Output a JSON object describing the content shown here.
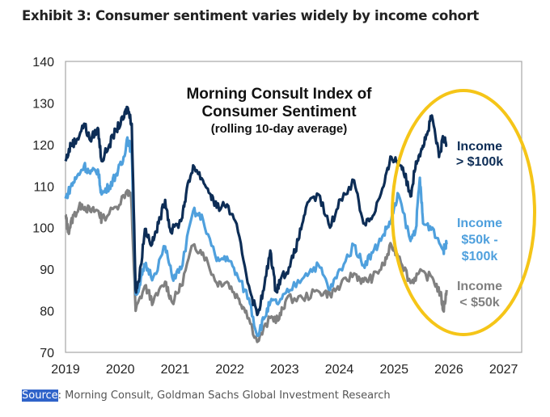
{
  "exhibit_title": "Exhibit 3: Consumer sentiment varies widely by income cohort",
  "source": {
    "label": "Source",
    "text": ": Morning Consult, Goldman Sachs Global Investment Research"
  },
  "chart_data": {
    "type": "line",
    "title": [
      "Morning Consult Index of",
      "Consumer Sentiment"
    ],
    "subtitle": "(rolling 10-day average)",
    "xlim": [
      2019,
      2027.33
    ],
    "ylim": [
      70,
      140
    ],
    "xticks": [
      "2019",
      "2020",
      "2021",
      "2022",
      "2023",
      "2024",
      "2025",
      "2026",
      "2027"
    ],
    "yticks": [
      "70",
      "80",
      "90",
      "100",
      "110",
      "120",
      "130",
      "140"
    ],
    "grid": false,
    "annotation": {
      "shape": "ellipse",
      "color": "#F5C518",
      "around": "2025-2026 data"
    },
    "series": [
      {
        "name": "Income > $100k",
        "label_lines": [
          "Income",
          "> $100k"
        ],
        "color": "#0d2d56",
        "x": [
          2019.0,
          2019.1,
          2019.2,
          2019.34,
          2019.45,
          2019.59,
          2019.66,
          2019.8,
          2019.93,
          2020.05,
          2020.13,
          2020.21,
          2020.28,
          2020.35,
          2020.45,
          2020.58,
          2020.7,
          2020.82,
          2020.92,
          2021.11,
          2021.2,
          2021.33,
          2021.51,
          2021.65,
          2021.76,
          2021.95,
          2022.15,
          2022.35,
          2022.5,
          2022.62,
          2022.74,
          2022.84,
          2022.94,
          2023.1,
          2023.25,
          2023.39,
          2023.62,
          2023.83,
          2024.02,
          2024.27,
          2024.44,
          2024.61,
          2024.81,
          2024.95,
          2025.05,
          2025.16,
          2025.3,
          2025.4,
          2025.5,
          2025.6,
          2025.69,
          2025.82,
          2025.9,
          2025.96
        ],
        "y": [
          116,
          120,
          121,
          125,
          121,
          124,
          116,
          120,
          123.7,
          126,
          129,
          125,
          85,
          88,
          99.7,
          96,
          101,
          106.7,
          99,
          101.6,
          108,
          115,
          111.4,
          108,
          104.8,
          105.6,
          99,
          86,
          79,
          85,
          94.5,
          84.7,
          88,
          90.6,
          97,
          104.8,
          108,
          100,
          106.8,
          111.4,
          101,
          102.8,
          110,
          117,
          116,
          114.5,
          107.5,
          115.9,
          119,
          122.3,
          127,
          117,
          121.7,
          119.8
        ]
      },
      {
        "name": "Income $50k - $100k",
        "label_lines": [
          "Income",
          "$50k -",
          "$100k"
        ],
        "color": "#4fa0dd",
        "x": [
          2019.0,
          2019.1,
          2019.2,
          2019.34,
          2019.45,
          2019.59,
          2019.66,
          2019.8,
          2019.93,
          2020.05,
          2020.13,
          2020.21,
          2020.28,
          2020.35,
          2020.45,
          2020.6,
          2020.82,
          2020.95,
          2021.11,
          2021.33,
          2021.51,
          2021.76,
          2021.95,
          2022.15,
          2022.35,
          2022.5,
          2022.62,
          2022.74,
          2022.9,
          2023.1,
          2023.39,
          2023.62,
          2023.83,
          2024.02,
          2024.27,
          2024.44,
          2024.61,
          2024.81,
          2024.95,
          2025.08,
          2025.3,
          2025.4,
          2025.47,
          2025.53,
          2025.7,
          2025.9,
          2025.96
        ],
        "y": [
          107,
          110,
          112,
          115,
          113,
          114,
          108,
          110,
          113,
          116,
          121.7,
          118,
          84,
          86,
          91,
          88,
          95.5,
          88,
          90,
          104,
          102,
          92,
          93,
          88,
          83,
          74,
          78,
          82,
          82,
          85,
          89,
          91,
          85,
          90,
          95.8,
          91,
          94,
          98.4,
          102,
          108,
          96.8,
          100,
          112,
          101,
          100,
          94.5,
          96
        ]
      },
      {
        "name": "Income < $50k",
        "label_lines": [
          "Income",
          "< $50k"
        ],
        "color": "#808080",
        "x": [
          2019.0,
          2019.05,
          2019.15,
          2019.3,
          2019.45,
          2019.6,
          2019.66,
          2019.93,
          2020.13,
          2020.2,
          2020.28,
          2020.45,
          2020.6,
          2020.82,
          2020.95,
          2021.11,
          2021.33,
          2021.51,
          2021.76,
          2021.95,
          2022.15,
          2022.3,
          2022.5,
          2022.74,
          2022.9,
          2023.03,
          2023.33,
          2023.62,
          2023.83,
          2024.02,
          2024.27,
          2024.44,
          2024.61,
          2024.81,
          2024.95,
          2025.1,
          2025.3,
          2025.45,
          2025.7,
          2025.85,
          2025.9,
          2025.96
        ],
        "y": [
          103,
          99,
          103,
          105.6,
          104,
          104,
          102,
          105,
          109,
          107,
          80,
          86,
          82,
          87,
          82,
          86,
          95.8,
          94,
          86.7,
          87,
          83,
          80,
          72.5,
          78.3,
          78,
          82.8,
          83,
          84.7,
          84,
          86,
          89,
          87,
          88,
          91,
          95.8,
          93,
          86.7,
          89,
          88,
          84,
          80,
          85
        ]
      }
    ]
  }
}
